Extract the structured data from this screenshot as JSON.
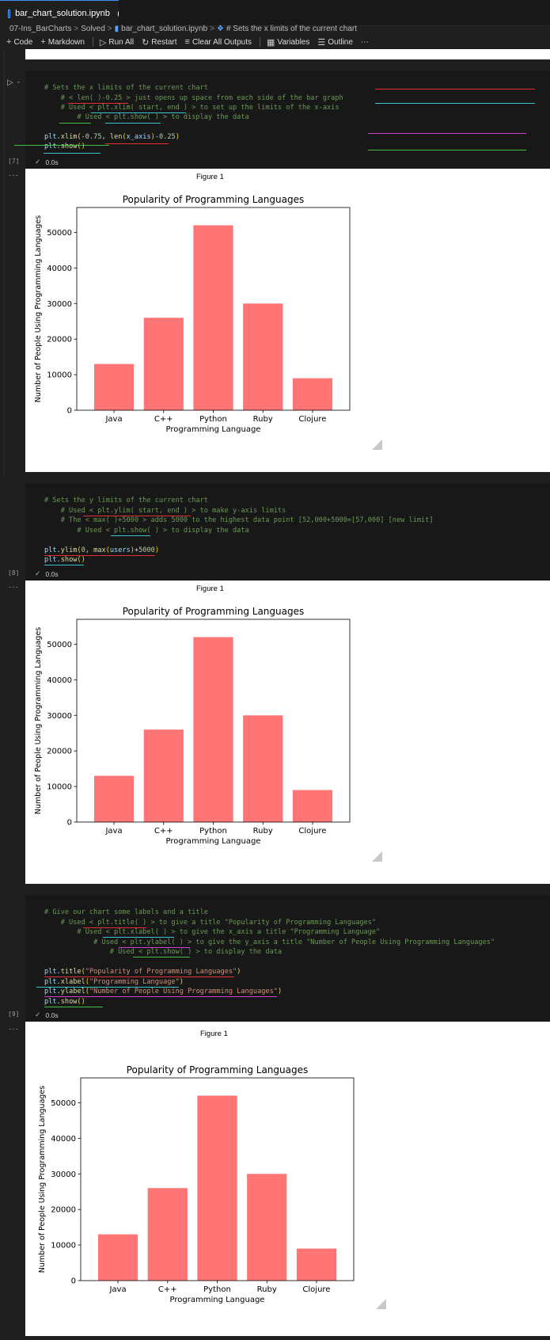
{
  "tab": {
    "title": "bar_chart_solution.ipynb"
  },
  "breadcrumb": {
    "items": [
      "07-Ins_BarCharts",
      "Solved",
      "bar_chart_solution.ipynb",
      "# Sets the x limits of the current chart"
    ]
  },
  "toolbar": {
    "code": "Code",
    "markdown": "Markdown",
    "run_all": "Run All",
    "restart": "Restart",
    "clear_outputs": "Clear All Outputs",
    "variables": "Variables",
    "outline": "Outline",
    "more": "⋯"
  },
  "cells": [
    {
      "exec_count": "[7]",
      "status": "0.0s",
      "lines": [
        "# Sets the x limits of the current chart",
        "    # < len( )-0.25 > just opens up space from each side of the bar graph",
        "    # Used < plt.xlim( start, end ) > to set up the limits of the x-axis",
        "        # Used < plt.show( ) > to display the data",
        "",
        "plt.xlim(-0.75, len(x_axis)-0.25)",
        "plt.show()"
      ],
      "figure_label": "Figure 1"
    },
    {
      "exec_count": "[8]",
      "status": "0.0s",
      "lines": [
        "# Sets the y limits of the current chart",
        "    # Used < plt.ylim( start, end ) > to make y-axis limits",
        "    # The < max( )+5000 > adds 5000 to the highest data point [52,000+5000=[57,000] [new limit]",
        "        # Used < plt.show( ) > to display the data",
        "",
        "plt.ylim(0, max(users)+5000)",
        "plt.show()"
      ],
      "figure_label": "Figure 1"
    },
    {
      "exec_count": "[9]",
      "status": "0.0s",
      "lines": [
        "# Give our chart some labels and a title",
        "    # Used < plt.title( ) > to give a title \"Popularity of Programming Languages\"",
        "        # Used < plt.xlabel( ) > to give the x_axis a title \"Programming Language\"",
        "            # Used < plt.ylabel( ) > to give the y_axis a title \"Number of People Using Programming Languages\"",
        "                # Used < plt.show( ) > to display the data",
        "",
        "plt.title(\"Popularity of Programming Languages\")",
        "plt.xlabel(\"Programming Language\")",
        "plt.ylabel(\"Number of People Using Programming Languages\")",
        "plt.show()"
      ],
      "figure_label": "Figure 1"
    }
  ],
  "colors": {
    "bar": "#ff7474",
    "red_ink": "#e03030",
    "cyan_ink": "#39c5cf",
    "magenta_ink": "#d040d0",
    "green_ink": "#40c040"
  },
  "chart_data": [
    {
      "type": "bar",
      "title": "Popularity of Programming Languages",
      "xlabel": "Programming Language",
      "ylabel": "Number of People Using Programming Languages",
      "categories": [
        "Java",
        "C++",
        "Python",
        "Ruby",
        "Clojure"
      ],
      "values": [
        13000,
        26000,
        52000,
        30000,
        9000
      ],
      "ylim": [
        0,
        57000
      ],
      "yticks": [
        0,
        10000,
        20000,
        30000,
        40000,
        50000
      ],
      "grid": false
    },
    {
      "type": "bar",
      "title": "Popularity of Programming Languages",
      "xlabel": "Programming Language",
      "ylabel": "Number of People Using Programming Languages",
      "categories": [
        "Java",
        "C++",
        "Python",
        "Ruby",
        "Clojure"
      ],
      "values": [
        13000,
        26000,
        52000,
        30000,
        9000
      ],
      "ylim": [
        0,
        57000
      ],
      "yticks": [
        0,
        10000,
        20000,
        30000,
        40000,
        50000
      ],
      "grid": false
    },
    {
      "type": "bar",
      "title": "Popularity of Programming Languages",
      "xlabel": "Programming Language",
      "ylabel": "Number of People Using Programming Languages",
      "categories": [
        "Java",
        "C++",
        "Python",
        "Ruby",
        "Clojure"
      ],
      "values": [
        13000,
        26000,
        52000,
        30000,
        9000
      ],
      "ylim": [
        0,
        57000
      ],
      "yticks": [
        0,
        10000,
        20000,
        30000,
        40000,
        50000
      ],
      "grid": false
    }
  ]
}
